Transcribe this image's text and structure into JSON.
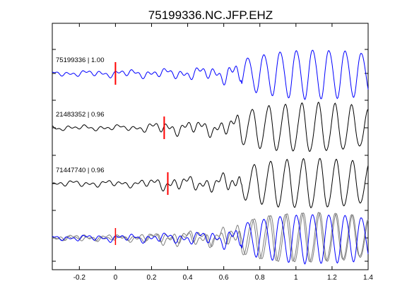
{
  "chart_data": {
    "type": "line",
    "title": "75199336.NC.JFP.EHZ",
    "xlabel": "",
    "ylabel": "",
    "xlim": [
      -0.35,
      1.4
    ],
    "xticks": [
      -0.2,
      0,
      0.2,
      0.4,
      0.6,
      0.8,
      1,
      1.2,
      1.4
    ],
    "xtick_labels": [
      "-0.2",
      "0",
      "0.2",
      "0.4",
      "0.6",
      "0.8",
      "1",
      "1.2",
      "1.4"
    ],
    "grid": false,
    "legend": "none",
    "colors": {
      "reference": "#0000ff",
      "neighbor": "#000000",
      "overlay_other": "#7f7f7f",
      "pick": "#ff0000"
    },
    "traces": [
      {
        "label": "75199336 | 1.00",
        "color": "#0000ff",
        "pick_time": 0.0,
        "envelope": [
          [
            -0.35,
            0.1
          ],
          [
            0.0,
            0.15
          ],
          [
            0.3,
            0.2
          ],
          [
            0.55,
            0.3
          ],
          [
            0.65,
            0.45
          ],
          [
            0.75,
            0.7
          ],
          [
            0.9,
            0.9
          ],
          [
            1.05,
            1.0
          ],
          [
            1.3,
            0.95
          ],
          [
            1.4,
            0.8
          ]
        ],
        "dominant_period": 0.09,
        "noise_seed": 1
      },
      {
        "label": "21483352 | 0.96",
        "color": "#000000",
        "pick_time": 0.27,
        "envelope": [
          [
            -0.35,
            0.1
          ],
          [
            0.1,
            0.12
          ],
          [
            0.25,
            0.25
          ],
          [
            0.45,
            0.3
          ],
          [
            0.62,
            0.35
          ],
          [
            0.72,
            0.7
          ],
          [
            0.85,
            0.9
          ],
          [
            1.1,
            1.0
          ],
          [
            1.3,
            0.9
          ],
          [
            1.4,
            0.7
          ]
        ],
        "dominant_period": 0.092,
        "noise_seed": 2
      },
      {
        "label": "71447740 | 0.96",
        "color": "#000000",
        "pick_time": 0.29,
        "envelope": [
          [
            -0.35,
            0.12
          ],
          [
            0.1,
            0.14
          ],
          [
            0.3,
            0.28
          ],
          [
            0.5,
            0.3
          ],
          [
            0.65,
            0.45
          ],
          [
            0.75,
            0.75
          ],
          [
            0.9,
            0.95
          ],
          [
            1.1,
            1.0
          ],
          [
            1.3,
            0.92
          ],
          [
            1.4,
            0.75
          ]
        ],
        "dominant_period": 0.091,
        "noise_seed": 3
      }
    ],
    "overlay": {
      "series": [
        "75199336",
        "21483352",
        "71447740"
      ],
      "pick_time": 0.0
    }
  }
}
